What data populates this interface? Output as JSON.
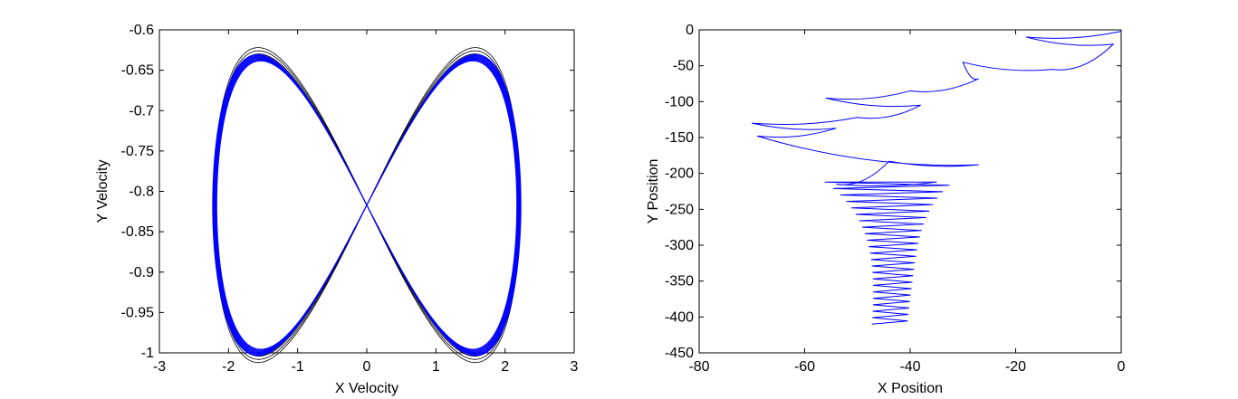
{
  "chart_data": [
    {
      "type": "line",
      "title": "",
      "xlabel": "X Velocity",
      "ylabel": "Y Velocity",
      "xlim": [
        -3,
        3
      ],
      "ylim": [
        -1,
        -0.6
      ],
      "xticks": [
        -3,
        -2,
        -1,
        0,
        1,
        2,
        3
      ],
      "yticks": [
        -1,
        -0.95,
        -0.9,
        -0.85,
        -0.8,
        -0.75,
        -0.7,
        -0.65,
        -0.6
      ],
      "xtick_labels": [
        "-3",
        "-2",
        "-1",
        "0",
        "1",
        "2",
        "3"
      ],
      "ytick_labels": [
        "-1",
        "-0.95",
        "-0.9",
        "-0.85",
        "-0.8",
        "-0.75",
        "-0.7",
        "-0.65",
        "-0.6"
      ],
      "grid": false,
      "series": [
        {
          "shape": "figure-eight limit cycle",
          "color": "#0000ff",
          "center": [
            0,
            -0.817
          ],
          "lobes": [
            {
              "x_extent": [
                -2.2,
                0
              ],
              "y_extent": [
                -0.985,
                -0.62
              ]
            },
            {
              "x_extent": [
                0,
                2.2
              ],
              "y_extent": [
                -0.985,
                -0.62
              ]
            }
          ],
          "transient_outer_orbit": {
            "color": "#000000",
            "x_extent": [
              -2.22,
              2.22
            ],
            "y_extent": [
              -0.997,
              -0.607
            ]
          }
        }
      ]
    },
    {
      "type": "line",
      "title": "",
      "xlabel": "X Position",
      "ylabel": "Y Position",
      "xlim": [
        -80,
        0
      ],
      "ylim": [
        -450,
        0
      ],
      "xticks": [
        -80,
        -60,
        -40,
        -20,
        0
      ],
      "yticks": [
        -450,
        -400,
        -350,
        -300,
        -250,
        -200,
        -150,
        -100,
        -50,
        0
      ],
      "xtick_labels": [
        "-80",
        "-60",
        "-40",
        "-20",
        "0"
      ],
      "ytick_labels": [
        "-450",
        "-400",
        "-350",
        "-300",
        "-250",
        "-200",
        "-150",
        "-100",
        "-50",
        "0"
      ],
      "grid": false,
      "series": [
        {
          "color": "#0000ff",
          "trajectory_waypoints": [
            [
              0,
              -2
            ],
            [
              -18,
              -10
            ],
            [
              -1.5,
              -20
            ],
            [
              -13,
              -55
            ],
            [
              -30,
              -45
            ],
            [
              -27,
              -68
            ],
            [
              -40,
              -85
            ],
            [
              -56,
              -95
            ],
            [
              -38,
              -105
            ],
            [
              -50,
              -122
            ],
            [
              -70,
              -130
            ],
            [
              -54,
              -137
            ],
            [
              -69,
              -148
            ],
            [
              -27,
              -188
            ],
            [
              -44,
              -183
            ],
            [
              -54,
              -215
            ],
            [
              -35,
              -212
            ],
            [
              -43,
              -410
            ]
          ]
        }
      ]
    }
  ]
}
